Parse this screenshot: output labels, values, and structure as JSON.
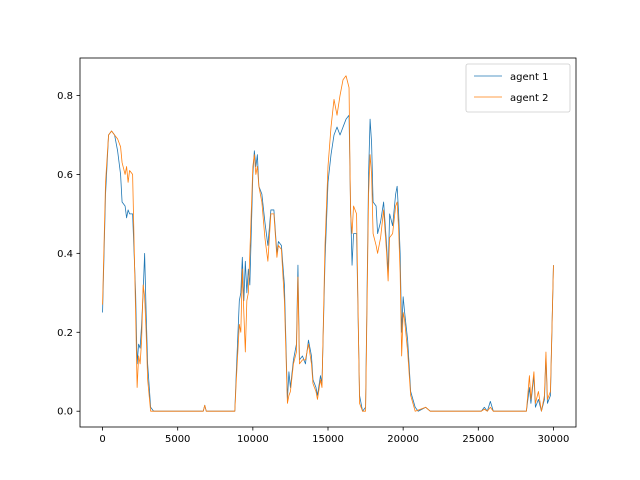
{
  "chart_data": {
    "type": "line",
    "title": "",
    "xlabel": "",
    "ylabel": "",
    "xlim": [
      -1500,
      31500
    ],
    "ylim": [
      -0.04,
      0.895
    ],
    "xticks": [
      0,
      5000,
      10000,
      15000,
      20000,
      25000,
      30000
    ],
    "yticks": [
      0.0,
      0.2,
      0.4,
      0.6,
      0.8
    ],
    "xtick_labels": [
      "0",
      "5000",
      "10000",
      "15000",
      "20000",
      "25000",
      "30000"
    ],
    "ytick_labels": [
      "0.0",
      "0.2",
      "0.4",
      "0.6",
      "0.8"
    ],
    "grid": false,
    "legend_position": "upper right",
    "series": [
      {
        "name": "agent 1",
        "color": "#1f77b4",
        "points": [
          [
            0,
            0.25
          ],
          [
            200,
            0.55
          ],
          [
            400,
            0.7
          ],
          [
            600,
            0.71
          ],
          [
            800,
            0.7
          ],
          [
            1000,
            0.66
          ],
          [
            1200,
            0.6
          ],
          [
            1300,
            0.53
          ],
          [
            1500,
            0.52
          ],
          [
            1600,
            0.49
          ],
          [
            1700,
            0.51
          ],
          [
            1800,
            0.5
          ],
          [
            2000,
            0.5
          ],
          [
            2200,
            0.3
          ],
          [
            2300,
            0.12
          ],
          [
            2400,
            0.17
          ],
          [
            2500,
            0.16
          ],
          [
            2600,
            0.22
          ],
          [
            2700,
            0.3
          ],
          [
            2800,
            0.4
          ],
          [
            2900,
            0.25
          ],
          [
            3000,
            0.12
          ],
          [
            3200,
            0.01
          ],
          [
            3400,
            0.0
          ],
          [
            6700,
            0.0
          ],
          [
            6800,
            0.015
          ],
          [
            6900,
            0.0
          ],
          [
            8800,
            0.0
          ],
          [
            8900,
            0.1
          ],
          [
            9100,
            0.28
          ],
          [
            9200,
            0.3
          ],
          [
            9300,
            0.39
          ],
          [
            9400,
            0.28
          ],
          [
            9500,
            0.38
          ],
          [
            9600,
            0.3
          ],
          [
            9700,
            0.36
          ],
          [
            9800,
            0.32
          ],
          [
            10000,
            0.6
          ],
          [
            10100,
            0.66
          ],
          [
            10200,
            0.62
          ],
          [
            10300,
            0.65
          ],
          [
            10400,
            0.57
          ],
          [
            10600,
            0.55
          ],
          [
            10800,
            0.48
          ],
          [
            11000,
            0.42
          ],
          [
            11200,
            0.51
          ],
          [
            11400,
            0.51
          ],
          [
            11600,
            0.4
          ],
          [
            11700,
            0.43
          ],
          [
            11900,
            0.42
          ],
          [
            12100,
            0.32
          ],
          [
            12300,
            0.03
          ],
          [
            12400,
            0.1
          ],
          [
            12500,
            0.06
          ],
          [
            12700,
            0.13
          ],
          [
            12900,
            0.17
          ],
          [
            13000,
            0.37
          ],
          [
            13100,
            0.13
          ],
          [
            13300,
            0.14
          ],
          [
            13500,
            0.12
          ],
          [
            13700,
            0.18
          ],
          [
            13900,
            0.14
          ],
          [
            14000,
            0.08
          ],
          [
            14200,
            0.06
          ],
          [
            14300,
            0.04
          ],
          [
            14500,
            0.09
          ],
          [
            14600,
            0.07
          ],
          [
            14800,
            0.38
          ],
          [
            15000,
            0.58
          ],
          [
            15200,
            0.65
          ],
          [
            15400,
            0.7
          ],
          [
            15600,
            0.72
          ],
          [
            15800,
            0.7
          ],
          [
            16000,
            0.72
          ],
          [
            16200,
            0.74
          ],
          [
            16400,
            0.75
          ],
          [
            16500,
            0.52
          ],
          [
            16600,
            0.37
          ],
          [
            16700,
            0.45
          ],
          [
            16900,
            0.45
          ],
          [
            17100,
            0.04
          ],
          [
            17300,
            0.0
          ],
          [
            17500,
            0.01
          ],
          [
            17700,
            0.6
          ],
          [
            17800,
            0.74
          ],
          [
            17900,
            0.68
          ],
          [
            18000,
            0.53
          ],
          [
            18200,
            0.52
          ],
          [
            18300,
            0.45
          ],
          [
            18500,
            0.48
          ],
          [
            18700,
            0.53
          ],
          [
            18900,
            0.42
          ],
          [
            19000,
            0.35
          ],
          [
            19100,
            0.5
          ],
          [
            19300,
            0.47
          ],
          [
            19500,
            0.55
          ],
          [
            19600,
            0.57
          ],
          [
            19700,
            0.5
          ],
          [
            19800,
            0.4
          ],
          [
            19900,
            0.2
          ],
          [
            20000,
            0.29
          ],
          [
            20100,
            0.25
          ],
          [
            20300,
            0.18
          ],
          [
            20500,
            0.05
          ],
          [
            20800,
            0.01
          ],
          [
            21000,
            0.0
          ],
          [
            21500,
            0.01
          ],
          [
            21800,
            0.0
          ],
          [
            25200,
            0.0
          ],
          [
            25400,
            0.01
          ],
          [
            25600,
            0.0
          ],
          [
            25800,
            0.025
          ],
          [
            26000,
            0.0
          ],
          [
            28200,
            0.0
          ],
          [
            28400,
            0.06
          ],
          [
            28500,
            0.02
          ],
          [
            28700,
            0.09
          ],
          [
            28800,
            0.01
          ],
          [
            29000,
            0.03
          ],
          [
            29200,
            0.0
          ],
          [
            29400,
            0.03
          ],
          [
            29500,
            0.14
          ],
          [
            29600,
            0.02
          ],
          [
            29800,
            0.04
          ],
          [
            30000,
            0.37
          ]
        ]
      },
      {
        "name": "agent 2",
        "color": "#ff7f0e",
        "points": [
          [
            0,
            0.27
          ],
          [
            200,
            0.58
          ],
          [
            400,
            0.7
          ],
          [
            600,
            0.71
          ],
          [
            800,
            0.7
          ],
          [
            1000,
            0.69
          ],
          [
            1200,
            0.67
          ],
          [
            1300,
            0.63
          ],
          [
            1500,
            0.6
          ],
          [
            1600,
            0.62
          ],
          [
            1700,
            0.58
          ],
          [
            1800,
            0.61
          ],
          [
            2000,
            0.6
          ],
          [
            2200,
            0.25
          ],
          [
            2300,
            0.06
          ],
          [
            2400,
            0.14
          ],
          [
            2500,
            0.12
          ],
          [
            2600,
            0.18
          ],
          [
            2700,
            0.32
          ],
          [
            2800,
            0.29
          ],
          [
            2900,
            0.2
          ],
          [
            3000,
            0.08
          ],
          [
            3200,
            0.0
          ],
          [
            6700,
            0.0
          ],
          [
            6800,
            0.015
          ],
          [
            6900,
            0.0
          ],
          [
            8800,
            0.0
          ],
          [
            8900,
            0.08
          ],
          [
            9100,
            0.22
          ],
          [
            9200,
            0.2
          ],
          [
            9300,
            0.36
          ],
          [
            9400,
            0.25
          ],
          [
            9500,
            0.15
          ],
          [
            9600,
            0.28
          ],
          [
            9700,
            0.3
          ],
          [
            9800,
            0.4
          ],
          [
            10000,
            0.62
          ],
          [
            10100,
            0.65
          ],
          [
            10200,
            0.6
          ],
          [
            10300,
            0.62
          ],
          [
            10400,
            0.57
          ],
          [
            10600,
            0.53
          ],
          [
            10800,
            0.44
          ],
          [
            11000,
            0.38
          ],
          [
            11200,
            0.5
          ],
          [
            11400,
            0.5
          ],
          [
            11600,
            0.39
          ],
          [
            11700,
            0.42
          ],
          [
            11900,
            0.41
          ],
          [
            12100,
            0.28
          ],
          [
            12300,
            0.02
          ],
          [
            12400,
            0.04
          ],
          [
            12500,
            0.05
          ],
          [
            12700,
            0.12
          ],
          [
            12900,
            0.15
          ],
          [
            13000,
            0.34
          ],
          [
            13100,
            0.12
          ],
          [
            13300,
            0.13
          ],
          [
            13500,
            0.13
          ],
          [
            13700,
            0.17
          ],
          [
            13900,
            0.12
          ],
          [
            14000,
            0.07
          ],
          [
            14200,
            0.05
          ],
          [
            14300,
            0.03
          ],
          [
            14500,
            0.08
          ],
          [
            14600,
            0.06
          ],
          [
            14800,
            0.42
          ],
          [
            15000,
            0.62
          ],
          [
            15200,
            0.72
          ],
          [
            15400,
            0.79
          ],
          [
            15600,
            0.75
          ],
          [
            15800,
            0.8
          ],
          [
            16000,
            0.84
          ],
          [
            16200,
            0.85
          ],
          [
            16400,
            0.82
          ],
          [
            16500,
            0.5
          ],
          [
            16600,
            0.45
          ],
          [
            16700,
            0.52
          ],
          [
            16900,
            0.5
          ],
          [
            17100,
            0.02
          ],
          [
            17300,
            0.0
          ],
          [
            17500,
            0.0
          ],
          [
            17700,
            0.55
          ],
          [
            17800,
            0.65
          ],
          [
            17900,
            0.6
          ],
          [
            18000,
            0.45
          ],
          [
            18200,
            0.42
          ],
          [
            18300,
            0.4
          ],
          [
            18500,
            0.44
          ],
          [
            18700,
            0.51
          ],
          [
            18900,
            0.4
          ],
          [
            19000,
            0.33
          ],
          [
            19100,
            0.44
          ],
          [
            19300,
            0.45
          ],
          [
            19500,
            0.52
          ],
          [
            19600,
            0.53
          ],
          [
            19700,
            0.46
          ],
          [
            19800,
            0.35
          ],
          [
            19900,
            0.14
          ],
          [
            20000,
            0.25
          ],
          [
            20100,
            0.23
          ],
          [
            20300,
            0.15
          ],
          [
            20500,
            0.04
          ],
          [
            20800,
            0.0
          ],
          [
            21500,
            0.01
          ],
          [
            21800,
            0.0
          ],
          [
            25200,
            0.0
          ],
          [
            25400,
            0.005
          ],
          [
            25600,
            0.0
          ],
          [
            25800,
            0.01
          ],
          [
            26000,
            0.0
          ],
          [
            28200,
            0.0
          ],
          [
            28400,
            0.09
          ],
          [
            28500,
            0.03
          ],
          [
            28700,
            0.1
          ],
          [
            28800,
            0.02
          ],
          [
            29000,
            0.05
          ],
          [
            29200,
            0.0
          ],
          [
            29400,
            0.04
          ],
          [
            29500,
            0.15
          ],
          [
            29600,
            0.03
          ],
          [
            29800,
            0.05
          ],
          [
            30000,
            0.37
          ]
        ]
      }
    ]
  }
}
